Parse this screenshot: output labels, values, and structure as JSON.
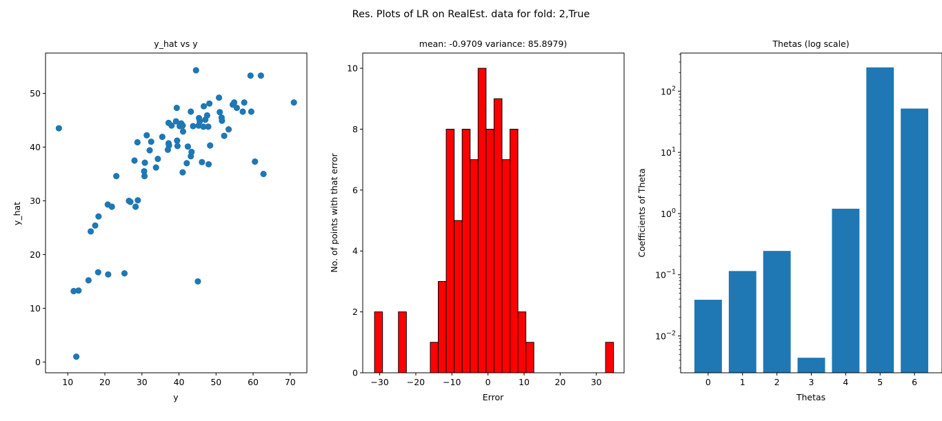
{
  "figure": {
    "suptitle": "Res. Plots of LR on RealEst. data for fold: 2,True"
  },
  "chart_data": [
    {
      "type": "scatter",
      "title": "y_hat vs y",
      "xlabel": "y",
      "ylabel": "y_hat",
      "xlim": [
        4.0,
        74.5
      ],
      "ylim": [
        -2.0,
        57.5
      ],
      "xticks": [
        10,
        20,
        30,
        40,
        50,
        60,
        70
      ],
      "yticks": [
        0,
        10,
        20,
        30,
        40,
        50
      ],
      "color": "#1f77b4",
      "points": [
        [
          7.6,
          43.5
        ],
        [
          11.6,
          13.2
        ],
        [
          12.3,
          1.0
        ],
        [
          12.9,
          13.3
        ],
        [
          15.6,
          15.2
        ],
        [
          16.2,
          24.3
        ],
        [
          17.4,
          25.4
        ],
        [
          18.2,
          16.7
        ],
        [
          18.3,
          27.1
        ],
        [
          20.8,
          29.3
        ],
        [
          20.9,
          16.3
        ],
        [
          21.9,
          28.9
        ],
        [
          23.1,
          34.6
        ],
        [
          25.3,
          16.5
        ],
        [
          26.5,
          30.0
        ],
        [
          26.9,
          29.8
        ],
        [
          28.0,
          37.5
        ],
        [
          28.3,
          28.9
        ],
        [
          28.8,
          40.9
        ],
        [
          28.9,
          30.1
        ],
        [
          30.6,
          35.5
        ],
        [
          30.7,
          34.6
        ],
        [
          30.8,
          37.1
        ],
        [
          31.3,
          42.2
        ],
        [
          32.1,
          39.4
        ],
        [
          32.5,
          41.0
        ],
        [
          33.8,
          36.2
        ],
        [
          34.3,
          37.8
        ],
        [
          35.5,
          41.9
        ],
        [
          37.0,
          39.5
        ],
        [
          37.2,
          44.5
        ],
        [
          37.2,
          40.7
        ],
        [
          37.3,
          40.3
        ],
        [
          38.0,
          44.0
        ],
        [
          39.2,
          44.8
        ],
        [
          39.4,
          47.3
        ],
        [
          39.5,
          41.2
        ],
        [
          39.6,
          40.2
        ],
        [
          40.2,
          43.9
        ],
        [
          40.6,
          44.4
        ],
        [
          41.0,
          35.3
        ],
        [
          41.0,
          44.0
        ],
        [
          41.1,
          42.9
        ],
        [
          42.1,
          37.0
        ],
        [
          42.4,
          40.1
        ],
        [
          43.2,
          46.6
        ],
        [
          43.2,
          38.3
        ],
        [
          43.4,
          39.1
        ],
        [
          43.8,
          43.9
        ],
        [
          44.6,
          54.3
        ],
        [
          45.1,
          15.0
        ],
        [
          45.3,
          44.0
        ],
        [
          45.4,
          45.4
        ],
        [
          45.6,
          44.8
        ],
        [
          46.2,
          37.2
        ],
        [
          46.6,
          43.8
        ],
        [
          46.7,
          47.6
        ],
        [
          47.1,
          45.1
        ],
        [
          47.6,
          45.9
        ],
        [
          47.9,
          43.8
        ],
        [
          48.0,
          36.8
        ],
        [
          48.2,
          48.1
        ],
        [
          48.4,
          40.3
        ],
        [
          50.8,
          49.2
        ],
        [
          51.0,
          46.5
        ],
        [
          51.5,
          45.5
        ],
        [
          51.6,
          44.9
        ],
        [
          52.2,
          42.1
        ],
        [
          53.4,
          43.3
        ],
        [
          54.5,
          47.9
        ],
        [
          54.9,
          48.3
        ],
        [
          55.6,
          47.3
        ],
        [
          57.2,
          46.6
        ],
        [
          57.6,
          48.3
        ],
        [
          59.3,
          53.3
        ],
        [
          59.5,
          46.6
        ],
        [
          60.5,
          37.3
        ],
        [
          62.1,
          53.3
        ],
        [
          62.8,
          35.0
        ],
        [
          71.0,
          48.3
        ]
      ]
    },
    {
      "type": "bar",
      "title": "mean: -0.9709 variance: 85.8979)",
      "xlabel": "Error",
      "ylabel": "No. of points with that error",
      "xlim": [
        -34.7,
        37.7
      ],
      "ylim": [
        0,
        10.5
      ],
      "xticks": [
        -30,
        -20,
        -10,
        0,
        10,
        20,
        30
      ],
      "xtick_labels": [
        "−30",
        "−20",
        "−10",
        "0",
        "10",
        "20",
        "30"
      ],
      "yticks": [
        0,
        2,
        4,
        6,
        8,
        10
      ],
      "color": "#ff0000",
      "edgecolor": "#000000",
      "bin_start": -31.43,
      "bin_width": 2.2067,
      "counts": [
        2,
        0,
        0,
        2,
        0,
        0,
        0,
        1,
        3,
        8,
        5,
        8,
        7,
        10,
        8,
        9,
        7,
        8,
        2,
        1,
        0,
        0,
        0,
        0,
        0,
        0,
        0,
        0,
        0,
        1
      ]
    },
    {
      "type": "bar",
      "title": "Thetas (log scale)",
      "xlabel": "Thetas",
      "ylabel": "Coefficients of Theta",
      "yscale": "log",
      "ylim": [
        0.0025,
        420
      ],
      "categories": [
        "0",
        "1",
        "2",
        "3",
        "4",
        "5",
        "6"
      ],
      "values": [
        0.039,
        0.115,
        0.245,
        0.0044,
        1.2,
        245,
        52
      ],
      "color": "#1f77b4",
      "ytick_labels": [
        {
          "mantissa": "10",
          "exponent": "−2",
          "value": 0.01
        },
        {
          "mantissa": "10",
          "exponent": "−1",
          "value": 0.1
        },
        {
          "mantissa": "10",
          "exponent": "0",
          "value": 1
        },
        {
          "mantissa": "10",
          "exponent": "1",
          "value": 10
        },
        {
          "mantissa": "10",
          "exponent": "2",
          "value": 100
        }
      ]
    }
  ]
}
